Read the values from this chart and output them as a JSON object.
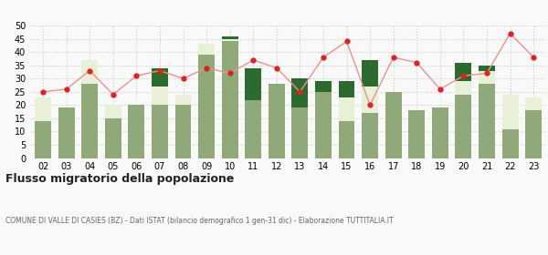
{
  "years": [
    "02",
    "03",
    "04",
    "05",
    "06",
    "07",
    "08",
    "09",
    "10",
    "11",
    "12",
    "13",
    "14",
    "15",
    "16",
    "17",
    "18",
    "19",
    "20",
    "21",
    "22",
    "23"
  ],
  "iscritti_altri_comuni": [
    14,
    19,
    28,
    15,
    20,
    20,
    20,
    39,
    44,
    22,
    28,
    19,
    25,
    14,
    17,
    25,
    18,
    19,
    24,
    28,
    11,
    18
  ],
  "iscritti_estero": [
    9,
    0,
    9,
    5,
    0,
    7,
    4,
    4,
    1,
    0,
    0,
    0,
    0,
    9,
    10,
    0,
    0,
    0,
    5,
    5,
    13,
    5
  ],
  "iscritti_altri": [
    0,
    0,
    0,
    0,
    0,
    7,
    0,
    0,
    1,
    12,
    0,
    11,
    4,
    6,
    10,
    0,
    0,
    0,
    7,
    2,
    0,
    0
  ],
  "cancellati": [
    25,
    26,
    33,
    24,
    31,
    33,
    30,
    34,
    32,
    37,
    34,
    25,
    38,
    44,
    20,
    38,
    36,
    26,
    31,
    32,
    47,
    38
  ],
  "color_comuni": "#8faa78",
  "color_estero": "#e8f0d8",
  "color_altri": "#2d6a2d",
  "color_cancellati": "#dd2222",
  "color_line": "#f09090",
  "ylim": [
    0,
    50
  ],
  "yticks": [
    0,
    5,
    10,
    15,
    20,
    25,
    30,
    35,
    40,
    45,
    50
  ],
  "title": "Flusso migratorio della popolazione",
  "subtitle": "COMUNE DI VALLE DI CASIES (BZ) - Dati ISTAT (bilancio demografico 1 gen-31 dic) - Elaborazione TUTTITALIA.IT",
  "background_color": "#f9f9f9"
}
